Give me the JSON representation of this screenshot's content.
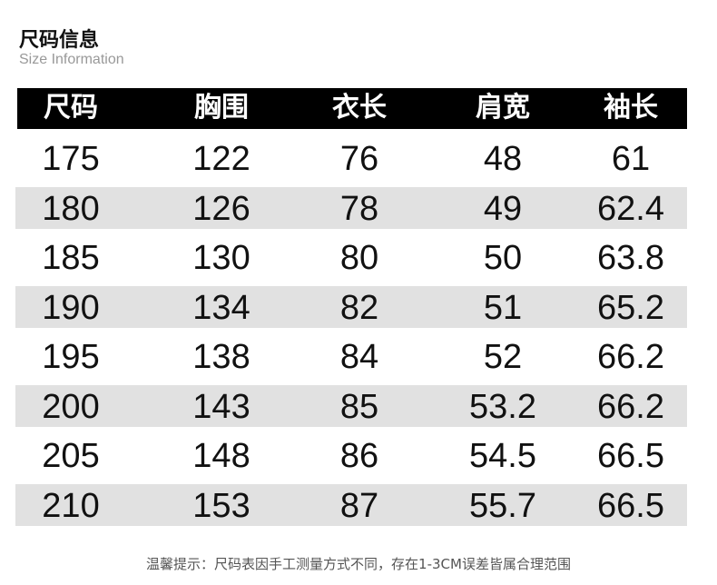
{
  "title": "尺码信息",
  "subtitle": "Size Information",
  "table": {
    "headers": [
      "尺码",
      "胸围",
      "衣长",
      "肩宽",
      "袖长"
    ],
    "rows": [
      [
        "175",
        "122",
        "76",
        "48",
        "61"
      ],
      [
        "180",
        "126",
        "78",
        "49",
        "62.4"
      ],
      [
        "185",
        "130",
        "80",
        "50",
        "63.8"
      ],
      [
        "190",
        "134",
        "82",
        "51",
        "65.2"
      ],
      [
        "195",
        "138",
        "84",
        "52",
        "66.2"
      ],
      [
        "200",
        "143",
        "85",
        "53.2",
        "66.2"
      ],
      [
        "205",
        "148",
        "86",
        "54.5",
        "66.5"
      ],
      [
        "210",
        "153",
        "87",
        "55.7",
        "66.5"
      ]
    ]
  },
  "note": "温馨提示：尺码表因手工测量方式不同，存在1-3CM误差皆属合理范围",
  "colors": {
    "header_bg": "#000000",
    "alt_row_bg": "#e1e1e1"
  }
}
